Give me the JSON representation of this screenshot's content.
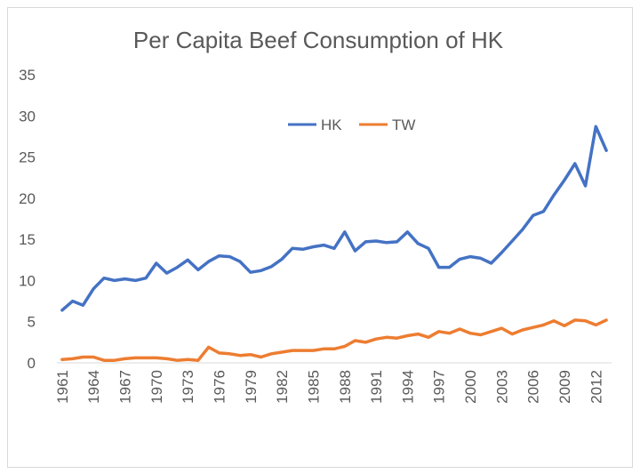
{
  "chart_data": {
    "type": "line",
    "title": "Per Capita Beef Consumption of HK",
    "xlabel": "",
    "ylabel": "",
    "ylim": [
      0,
      35
    ],
    "y_ticks": [
      "0",
      "5",
      "10",
      "15",
      "20",
      "25",
      "30",
      "35"
    ],
    "x": [
      1961,
      1962,
      1963,
      1964,
      1965,
      1966,
      1967,
      1968,
      1969,
      1970,
      1971,
      1972,
      1973,
      1974,
      1975,
      1976,
      1977,
      1978,
      1979,
      1980,
      1981,
      1982,
      1983,
      1984,
      1985,
      1986,
      1987,
      1988,
      1989,
      1990,
      1991,
      1992,
      1993,
      1994,
      1995,
      1996,
      1997,
      1998,
      1999,
      2000,
      2001,
      2002,
      2003,
      2004,
      2005,
      2006,
      2007,
      2008,
      2009,
      2010,
      2011,
      2012,
      2013
    ],
    "x_tick_labels": [
      "1961",
      "1964",
      "1967",
      "1970",
      "1973",
      "1976",
      "1979",
      "1982",
      "1985",
      "1988",
      "1991",
      "1994",
      "1997",
      "2000",
      "2003",
      "2006",
      "2009",
      "2012"
    ],
    "legend_position": "top",
    "grid": false,
    "series": [
      {
        "name": "HK",
        "color": "#4472c4",
        "values": [
          6.4,
          7.5,
          7.0,
          9.0,
          10.3,
          10.0,
          10.2,
          10.0,
          10.3,
          12.1,
          10.9,
          11.6,
          12.5,
          11.3,
          12.3,
          13.0,
          12.9,
          12.3,
          11.0,
          11.2,
          11.7,
          12.6,
          13.9,
          13.8,
          14.1,
          14.3,
          13.9,
          15.9,
          13.6,
          14.7,
          14.8,
          14.6,
          14.7,
          15.9,
          14.5,
          13.9,
          11.6,
          11.6,
          12.6,
          12.9,
          12.7,
          12.1,
          13.4,
          14.8,
          16.2,
          17.9,
          18.4,
          20.4,
          22.2,
          24.2,
          21.5,
          28.7,
          25.8
        ]
      },
      {
        "name": "TW",
        "color": "#ed7d31",
        "values": [
          0.4,
          0.5,
          0.7,
          0.7,
          0.3,
          0.3,
          0.5,
          0.6,
          0.6,
          0.6,
          0.5,
          0.3,
          0.4,
          0.3,
          1.9,
          1.2,
          1.1,
          0.9,
          1.0,
          0.7,
          1.1,
          1.3,
          1.5,
          1.5,
          1.5,
          1.7,
          1.7,
          2.0,
          2.7,
          2.5,
          2.9,
          3.1,
          3.0,
          3.3,
          3.5,
          3.1,
          3.8,
          3.6,
          4.1,
          3.6,
          3.4,
          3.8,
          4.2,
          3.5,
          4.0,
          4.3,
          4.6,
          5.1,
          4.5,
          5.2,
          5.1,
          4.6,
          5.2
        ]
      }
    ]
  }
}
